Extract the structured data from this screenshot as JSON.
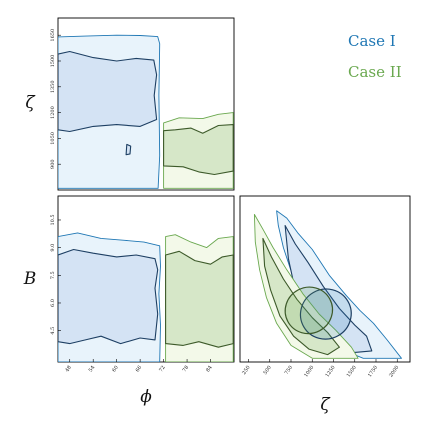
{
  "chart_data": {
    "type": "corner",
    "legend": {
      "placement": "top-right",
      "entries": [
        {
          "label": "Case I",
          "color": "#1f77b4"
        },
        {
          "label": "Case II",
          "color": "#6aa84f"
        }
      ]
    },
    "axes": {
      "phi": {
        "label": "ϕ",
        "range": [
          45,
          90
        ],
        "ticks": [
          "48",
          "54",
          "60",
          "66",
          "72",
          "78",
          "84"
        ]
      },
      "zeta_row": {
        "label": "ζ",
        "range": [
          750,
          1750
        ],
        "ticks": [
          "900",
          "1050",
          "1200",
          "1350",
          "1500",
          "1650"
        ]
      },
      "B": {
        "label": "B",
        "range": [
          2.8,
          11.8
        ],
        "ticks": [
          "4.5",
          "6.0",
          "7.5",
          "9.0",
          "10.5"
        ]
      },
      "zeta_col": {
        "label": "ζ",
        "range": [
          150,
          2150
        ],
        "ticks": [
          "250",
          "500",
          "750",
          "1000",
          "1250",
          "1500",
          "1750",
          "2000"
        ]
      }
    },
    "panels": [
      {
        "name": "phi-vs-zeta",
        "x_axis": "phi",
        "y_axis": "zeta_row",
        "series": [
          {
            "name": "Case I",
            "level": "outer",
            "points": [
              [
                45,
                1640
              ],
              [
                52,
                1645
              ],
              [
                60,
                1650
              ],
              [
                66,
                1648
              ],
              [
                70.5,
                1642
              ],
              [
                71,
                1600
              ],
              [
                70.8,
                1300
              ],
              [
                71,
                950
              ],
              [
                70.6,
                760
              ],
              [
                45,
                760
              ]
            ]
          },
          {
            "name": "Case I",
            "level": "inner",
            "points": [
              [
                45,
                1540
              ],
              [
                48,
                1555
              ],
              [
                54,
                1520
              ],
              [
                60,
                1500
              ],
              [
                65,
                1515
              ],
              [
                69.5,
                1505
              ],
              [
                70.2,
                1420
              ],
              [
                69.6,
                1300
              ],
              [
                70.2,
                1160
              ],
              [
                66,
                1120
              ],
              [
                60,
                1130
              ],
              [
                54,
                1120
              ],
              [
                48,
                1090
              ],
              [
                45,
                1100
              ]
            ]
          },
          {
            "name": "Case I",
            "level": "inner-island",
            "points": [
              [
                62.6,
                1015
              ],
              [
                63.6,
                1005
              ],
              [
                63.4,
                960
              ],
              [
                62.4,
                955
              ]
            ]
          },
          {
            "name": "Case II",
            "level": "outer",
            "points": [
              [
                72,
                1140
              ],
              [
                76,
                1170
              ],
              [
                82,
                1165
              ],
              [
                86,
                1190
              ],
              [
                89.8,
                1200
              ],
              [
                89.8,
                760
              ],
              [
                72,
                760
              ]
            ]
          },
          {
            "name": "Case II",
            "level": "inner",
            "points": [
              [
                72,
                1095
              ],
              [
                75,
                1100
              ],
              [
                79,
                1110
              ],
              [
                82,
                1080
              ],
              [
                86,
                1125
              ],
              [
                89.8,
                1130
              ],
              [
                89.8,
                860
              ],
              [
                85,
                840
              ],
              [
                81,
                855
              ],
              [
                77,
                885
              ],
              [
                72,
                890
              ]
            ]
          }
        ]
      },
      {
        "name": "phi-vs-B",
        "x_axis": "phi",
        "y_axis": "B",
        "series": [
          {
            "name": "Case I",
            "level": "outer",
            "points": [
              [
                45,
                9.6
              ],
              [
                50,
                9.8
              ],
              [
                56,
                9.5
              ],
              [
                62,
                9.4
              ],
              [
                67,
                9.3
              ],
              [
                71,
                9.1
              ],
              [
                71.2,
                8.0
              ],
              [
                70.8,
                6.5
              ],
              [
                71.2,
                4.8
              ],
              [
                71,
                2.8
              ],
              [
                45,
                2.8
              ]
            ]
          },
          {
            "name": "Case I",
            "level": "inner",
            "points": [
              [
                45,
                8.6
              ],
              [
                49,
                8.9
              ],
              [
                54,
                8.7
              ],
              [
                60,
                8.5
              ],
              [
                65,
                8.6
              ],
              [
                69.8,
                8.4
              ],
              [
                70.5,
                7.8
              ],
              [
                69.8,
                6.8
              ],
              [
                70.5,
                5.4
              ],
              [
                69.8,
                4.0
              ],
              [
                66,
                4.1
              ],
              [
                61,
                3.8
              ],
              [
                56,
                4.2
              ],
              [
                52,
                4.0
              ],
              [
                48,
                3.8
              ],
              [
                45,
                3.9
              ]
            ]
          },
          {
            "name": "Case II",
            "level": "outer",
            "points": [
              [
                72.5,
                9.6
              ],
              [
                75,
                9.7
              ],
              [
                79,
                9.3
              ],
              [
                83,
                9.0
              ],
              [
                86,
                9.5
              ],
              [
                89.8,
                9.6
              ],
              [
                89.8,
                2.8
              ],
              [
                72.5,
                2.8
              ]
            ]
          },
          {
            "name": "Case II",
            "level": "inner",
            "points": [
              [
                72.5,
                8.6
              ],
              [
                76,
                8.8
              ],
              [
                80,
                8.3
              ],
              [
                84,
                8.1
              ],
              [
                87,
                8.5
              ],
              [
                89.8,
                8.6
              ],
              [
                89.8,
                3.8
              ],
              [
                86,
                3.6
              ],
              [
                81,
                3.9
              ],
              [
                77,
                3.7
              ],
              [
                72.5,
                3.8
              ]
            ]
          }
        ]
      },
      {
        "name": "zeta-vs-B",
        "x_axis": "zeta_col",
        "y_axis": "B",
        "series": [
          {
            "name": "Case I",
            "level": "outer",
            "points": [
              [
                580,
                11.0
              ],
              [
                700,
                10.6
              ],
              [
                830,
                9.8
              ],
              [
                1000,
                8.9
              ],
              [
                1200,
                7.5
              ],
              [
                1400,
                6.4
              ],
              [
                1560,
                5.6
              ],
              [
                1720,
                4.9
              ],
              [
                1880,
                4.0
              ],
              [
                2050,
                3.0
              ],
              [
                1600,
                3.0
              ],
              [
                1330,
                3.5
              ],
              [
                1120,
                4.2
              ],
              [
                980,
                5.1
              ],
              [
                860,
                6.3
              ],
              [
                760,
                7.6
              ],
              [
                660,
                9.0
              ],
              [
                600,
                10.2
              ]
            ]
          },
          {
            "name": "Case I",
            "level": "inner",
            "points": [
              [
                680,
                10.2
              ],
              [
                800,
                9.2
              ],
              [
                950,
                8.2
              ],
              [
                1130,
                6.9
              ],
              [
                1320,
                5.7
              ],
              [
                1500,
                4.8
              ],
              [
                1640,
                4.2
              ],
              [
                1700,
                3.4
              ],
              [
                1450,
                3.3
              ],
              [
                1200,
                3.6
              ],
              [
                1020,
                4.5
              ],
              [
                880,
                5.6
              ],
              [
                790,
                6.9
              ],
              [
                720,
                8.4
              ]
            ]
          },
          {
            "name": "Case II",
            "level": "outer",
            "points": [
              [
                320,
                10.8
              ],
              [
                420,
                10.0
              ],
              [
                540,
                9.0
              ],
              [
                700,
                7.8
              ],
              [
                890,
                6.5
              ],
              [
                1080,
                5.4
              ],
              [
                1280,
                4.5
              ],
              [
                1460,
                3.6
              ],
              [
                1540,
                3.0
              ],
              [
                1000,
                3.0
              ],
              [
                750,
                3.7
              ],
              [
                580,
                4.9
              ],
              [
                460,
                6.3
              ],
              [
                380,
                7.8
              ],
              [
                330,
                9.3
              ]
            ]
          },
          {
            "name": "Case II",
            "level": "inner",
            "points": [
              [
                420,
                9.5
              ],
              [
                520,
                8.5
              ],
              [
                660,
                7.3
              ],
              [
                820,
                6.2
              ],
              [
                1000,
                5.2
              ],
              [
                1180,
                4.4
              ],
              [
                1320,
                3.6
              ],
              [
                1180,
                3.2
              ],
              [
                960,
                3.5
              ],
              [
                780,
                4.2
              ],
              [
                620,
                5.3
              ],
              [
                510,
                6.7
              ],
              [
                440,
                8.0
              ]
            ]
          },
          {
            "name": "Case I",
            "level": "ellipse",
            "center": [
              1160,
              5.4
            ],
            "rx": 300,
            "ry": 1.35,
            "angle": -30
          },
          {
            "name": "Case II",
            "level": "ellipse",
            "center": [
              960,
              5.6
            ],
            "rx": 280,
            "ry": 1.25,
            "angle": -28
          }
        ]
      }
    ]
  },
  "colors": {
    "case1": "#1f77b4",
    "case1_fill_outer": "#e8f3fb",
    "case1_fill_inner": "#d4e3f4",
    "case2": "#6aa84f",
    "case2_fill_outer": "#f3f9e9",
    "case2_fill_inner": "#d6e7c8"
  }
}
